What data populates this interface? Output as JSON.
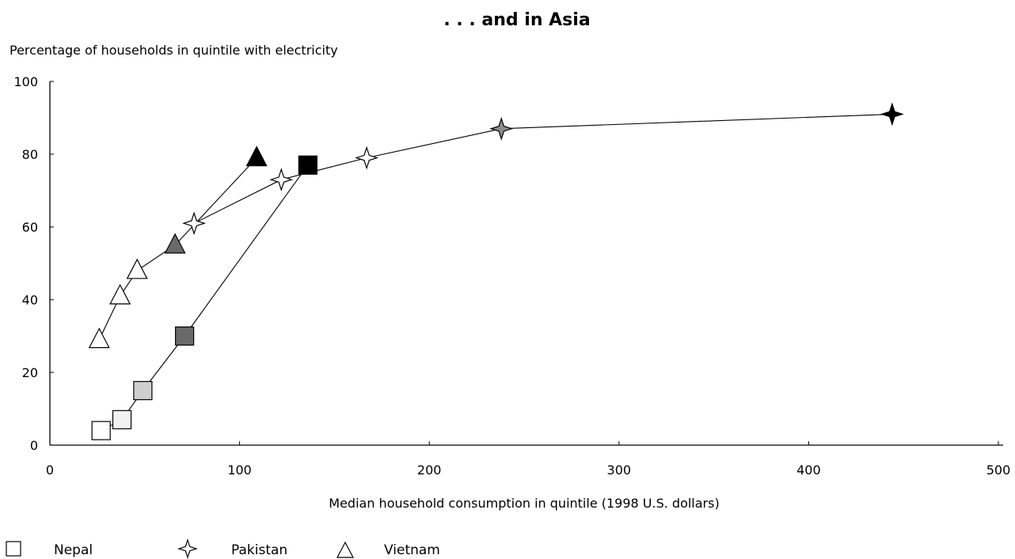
{
  "chart_data": {
    "type": "scatter",
    "title": ". . . and in Asia",
    "ylabel": "Percentage of households in quintile with electricity",
    "xlabel": "Median household consumption in quintile (1998 U.S. dollars)",
    "xlim": [
      0,
      500
    ],
    "ylim": [
      0,
      100
    ],
    "x_ticks": [
      "0",
      "100",
      "200",
      "300",
      "400",
      "500"
    ],
    "y_ticks": [
      "0",
      "20",
      "40",
      "60",
      "80",
      "100"
    ],
    "grid": false,
    "legend_position": "bottom-left",
    "series": [
      {
        "name": "Nepal",
        "marker": "square",
        "points": [
          {
            "x": 27,
            "y": 4,
            "fill": "#ffffff"
          },
          {
            "x": 38,
            "y": 7,
            "fill": "#f2f2f2"
          },
          {
            "x": 49,
            "y": 15,
            "fill": "#cfcfcf"
          },
          {
            "x": 71,
            "y": 30,
            "fill": "#6a6a6a"
          },
          {
            "x": 136,
            "y": 77,
            "fill": "#000000"
          }
        ]
      },
      {
        "name": "Pakistan",
        "marker": "four-point-star",
        "points": [
          {
            "x": 76,
            "y": 61,
            "fill": "#ffffff"
          },
          {
            "x": 122,
            "y": 73,
            "fill": "#ffffff"
          },
          {
            "x": 167,
            "y": 79,
            "fill": "#ffffff"
          },
          {
            "x": 238,
            "y": 87,
            "fill": "#8c8c8c"
          },
          {
            "x": 444,
            "y": 91,
            "fill": "#000000"
          }
        ]
      },
      {
        "name": "Vietnam",
        "marker": "triangle",
        "points": [
          {
            "x": 26,
            "y": 29,
            "fill": "#ffffff"
          },
          {
            "x": 37,
            "y": 41,
            "fill": "#ffffff"
          },
          {
            "x": 46,
            "y": 48,
            "fill": "#ffffff"
          },
          {
            "x": 66,
            "y": 55,
            "fill": "#6a6a6a"
          },
          {
            "x": 109,
            "y": 79,
            "fill": "#000000"
          }
        ]
      }
    ]
  }
}
